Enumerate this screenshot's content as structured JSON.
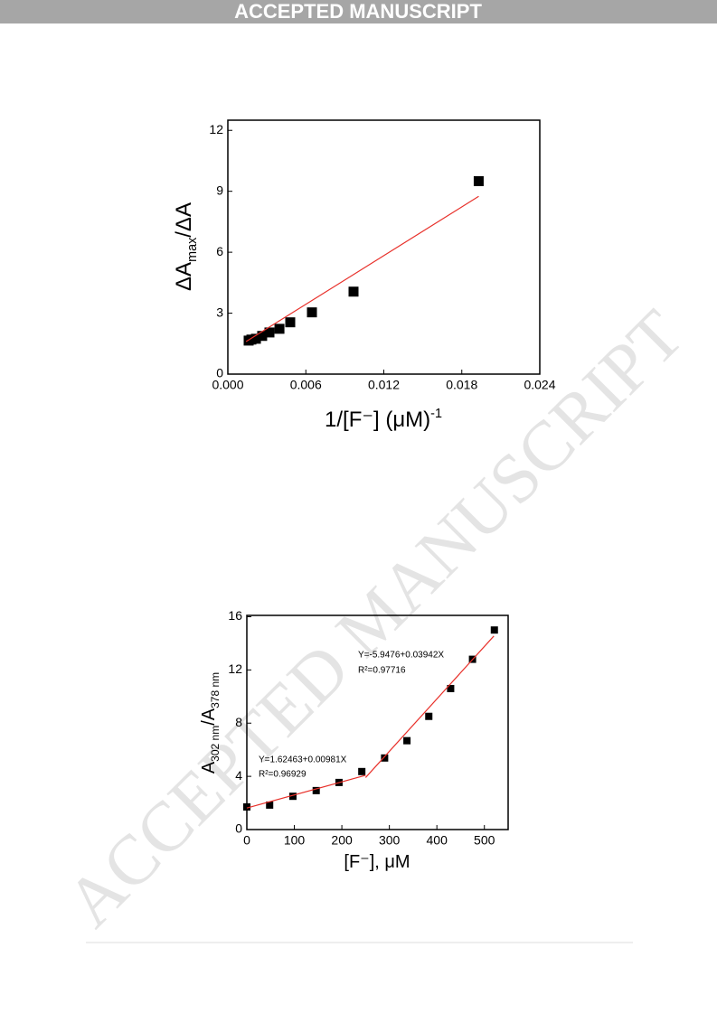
{
  "header": {
    "title": "ACCEPTED MANUSCRIPT"
  },
  "watermark": "ACCEPTED MANUSCRIPT",
  "chart_data": [
    {
      "type": "scatter",
      "x_label": [
        "1/[F⁻]  (μM)",
        "-1"
      ],
      "y_label": [
        "ΔA",
        "max",
        "/ΔA"
      ],
      "xlim": [
        0,
        0.024
      ],
      "xticks": [
        {
          "value": 0,
          "label": "0.000"
        },
        {
          "value": 0.006,
          "label": "0.006"
        },
        {
          "value": 0.012,
          "label": "0.012"
        },
        {
          "value": 0.018,
          "label": "0.018"
        },
        {
          "value": 0.024,
          "label": "0.024"
        }
      ],
      "ylim": [
        0,
        12.5
      ],
      "yticks": [
        0,
        3,
        6,
        9,
        12
      ],
      "series": [
        {
          "style": "markers",
          "color": "#000000",
          "x": [
            0.0193,
            0.00967,
            0.00647,
            0.0048,
            0.00397,
            0.0032,
            0.00264,
            0.00216,
            0.00181,
            0.0016
          ],
          "values": [
            9.5,
            4.06,
            3.04,
            2.55,
            2.23,
            2.05,
            1.88,
            1.74,
            1.7,
            1.65
          ]
        },
        {
          "style": "line",
          "color": "#e8302a",
          "x": [
            0.0014,
            0.0193
          ],
          "values": [
            1.6,
            8.75
          ]
        }
      ],
      "annotations": []
    },
    {
      "type": "scatter",
      "x_label": [
        "[F⁻], μM"
      ],
      "y_label": [
        "A",
        "302 nm",
        "/A",
        "378 nm"
      ],
      "xlim": [
        0,
        550
      ],
      "xticks": [
        0,
        100,
        200,
        300,
        400,
        500
      ],
      "ylim": [
        0,
        16.1
      ],
      "yticks": [
        0,
        4,
        8,
        12,
        16
      ],
      "series": [
        {
          "style": "markers",
          "color": "#000000",
          "x": [
            0,
            48,
            97,
            146,
            194,
            242,
            290,
            337,
            383,
            429,
            475,
            521
          ],
          "values": [
            1.7,
            1.84,
            2.5,
            2.93,
            3.54,
            4.36,
            5.38,
            6.68,
            8.51,
            10.6,
            12.8,
            15.0
          ]
        },
        {
          "style": "line",
          "color": "#e8302a",
          "x": [
            0,
            250
          ],
          "values": [
            1.62,
            4.08
          ]
        },
        {
          "style": "line",
          "color": "#e8302a",
          "x": [
            250,
            520
          ],
          "values": [
            3.91,
            14.55
          ]
        }
      ],
      "annotations": [
        "Y=1.62463+0.00981X",
        "R²=0.96929",
        "Y=-5.9476+0.03942X",
        "R²=0.97716"
      ]
    }
  ]
}
